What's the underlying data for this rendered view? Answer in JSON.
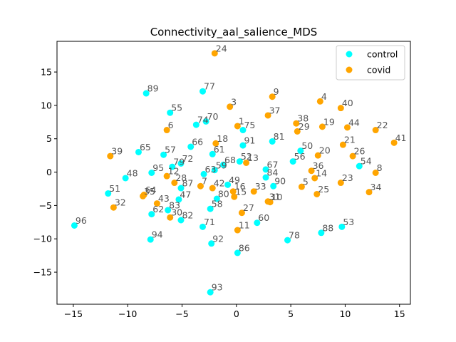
{
  "chart_data": {
    "type": "scatter",
    "title": "Connectivity_aal_salience_MDS",
    "xlabel": "",
    "ylabel": "",
    "xlim": [
      -16.5,
      16.0
    ],
    "ylim": [
      -19.8,
      19.6
    ],
    "xticks": [
      -15,
      -10,
      -5,
      0,
      5,
      10,
      15
    ],
    "xtick_labels": [
      "−15",
      "−10",
      "−5",
      "0",
      "5",
      "10",
      "15"
    ],
    "yticks": [
      -15,
      -10,
      -5,
      0,
      5,
      10,
      15
    ],
    "ytick_labels": [
      "−15",
      "−10",
      "−5",
      "0",
      "5",
      "10",
      "15"
    ],
    "grid": false,
    "legend_position": "top-right",
    "series": [
      {
        "name": "control",
        "color": "#00ffff",
        "points": [
          {
            "label": "48",
            "x": -10.2,
            "y": -0.9
          },
          {
            "label": "49",
            "x": -0.8,
            "y": -1.9
          },
          {
            "label": "50",
            "x": 5.9,
            "y": 3.2
          },
          {
            "label": "51",
            "x": -11.8,
            "y": -3.2
          },
          {
            "label": "52",
            "x": 0.3,
            "y": 1.6
          },
          {
            "label": "53",
            "x": 9.7,
            "y": -8.2
          },
          {
            "label": "54",
            "x": 11.3,
            "y": 0.9
          },
          {
            "label": "55",
            "x": -6.1,
            "y": 8.9
          },
          {
            "label": "56",
            "x": 5.2,
            "y": 1.6
          },
          {
            "label": "57",
            "x": -6.7,
            "y": 2.6
          },
          {
            "label": "58",
            "x": -2.4,
            "y": -5.5
          },
          {
            "label": "59",
            "x": -2.0,
            "y": 0.3
          },
          {
            "label": "60",
            "x": 1.9,
            "y": -7.6
          },
          {
            "label": "61",
            "x": -2.2,
            "y": 2.7
          },
          {
            "label": "62",
            "x": -7.8,
            "y": -6.3
          },
          {
            "label": "63",
            "x": -3.0,
            "y": -0.3
          },
          {
            "label": "65",
            "x": -9.0,
            "y": 3.0
          },
          {
            "label": "66",
            "x": -4.2,
            "y": 3.8
          },
          {
            "label": "67",
            "x": 2.7,
            "y": 0.4
          },
          {
            "label": "68",
            "x": -1.2,
            "y": 1.1
          },
          {
            "label": "70",
            "x": -2.8,
            "y": 7.6
          },
          {
            "label": "71",
            "x": -3.1,
            "y": -8.2
          },
          {
            "label": "72",
            "x": -5.1,
            "y": 1.3
          },
          {
            "label": "74",
            "x": -3.7,
            "y": 7.1
          },
          {
            "label": "75",
            "x": 0.6,
            "y": 6.3
          },
          {
            "label": "77",
            "x": -3.1,
            "y": 12.1
          },
          {
            "label": "78",
            "x": 4.7,
            "y": -10.2
          },
          {
            "label": "79",
            "x": -5.9,
            "y": 0.8
          },
          {
            "label": "80",
            "x": -1.8,
            "y": -4.0
          },
          {
            "label": "81",
            "x": 3.3,
            "y": 4.6
          },
          {
            "label": "82",
            "x": -5.1,
            "y": -7.2
          },
          {
            "label": "83",
            "x": -6.3,
            "y": -5.7
          },
          {
            "label": "84",
            "x": 2.7,
            "y": -0.8
          },
          {
            "label": "86",
            "x": 0.1,
            "y": -12.1
          },
          {
            "label": "87",
            "x": -5.1,
            "y": -2.4
          },
          {
            "label": "88",
            "x": 7.8,
            "y": -9.1
          },
          {
            "label": "89",
            "x": -8.3,
            "y": 11.8
          },
          {
            "label": "90",
            "x": 3.4,
            "y": -2.1
          },
          {
            "label": "91",
            "x": 0.6,
            "y": 4.0
          },
          {
            "label": "92",
            "x": -2.3,
            "y": -10.7
          },
          {
            "label": "93",
            "x": -2.4,
            "y": -18.0
          },
          {
            "label": "94",
            "x": -7.9,
            "y": -10.1
          },
          {
            "label": "95",
            "x": -7.8,
            "y": -0.1
          },
          {
            "label": "96",
            "x": -14.9,
            "y": -8.0
          },
          {
            "label": "47",
            "x": -5.3,
            "y": -4.1
          }
        ]
      },
      {
        "name": "covid",
        "color": "#ffa500",
        "points": [
          {
            "label": "1",
            "x": 0.1,
            "y": 6.9
          },
          {
            "label": "3",
            "x": -0.6,
            "y": 9.8
          },
          {
            "label": "4",
            "x": 7.7,
            "y": 10.6
          },
          {
            "label": "5",
            "x": 6.0,
            "y": -2.2
          },
          {
            "label": "6",
            "x": -6.4,
            "y": 6.3
          },
          {
            "label": "7",
            "x": -3.3,
            "y": -2.1
          },
          {
            "label": "8",
            "x": 12.8,
            "y": -0.1
          },
          {
            "label": "9",
            "x": 3.3,
            "y": 11.3
          },
          {
            "label": "10",
            "x": 3.1,
            "y": -4.5
          },
          {
            "label": "11",
            "x": 0.1,
            "y": -8.7
          },
          {
            "label": "12",
            "x": -6.4,
            "y": -0.6
          },
          {
            "label": "13",
            "x": 0.9,
            "y": 1.4
          },
          {
            "label": "14",
            "x": 7.2,
            "y": -0.9
          },
          {
            "label": "15",
            "x": -0.2,
            "y": -3.7
          },
          {
            "label": "16",
            "x": -0.3,
            "y": -2.9
          },
          {
            "label": "18",
            "x": -1.9,
            "y": 4.3
          },
          {
            "label": "19",
            "x": 7.9,
            "y": 6.8
          },
          {
            "label": "20",
            "x": 7.5,
            "y": 2.5
          },
          {
            "label": "21",
            "x": 9.8,
            "y": 4.1
          },
          {
            "label": "22",
            "x": 12.8,
            "y": 6.3
          },
          {
            "label": "23",
            "x": 9.6,
            "y": -1.6
          },
          {
            "label": "24",
            "x": -2.0,
            "y": 17.8
          },
          {
            "label": "25",
            "x": 7.4,
            "y": -3.3
          },
          {
            "label": "26",
            "x": 10.7,
            "y": 2.4
          },
          {
            "label": "27",
            "x": 0.5,
            "y": -6.1
          },
          {
            "label": "28",
            "x": -5.7,
            "y": -1.6
          },
          {
            "label": "29",
            "x": 5.6,
            "y": 6.1
          },
          {
            "label": "30",
            "x": -6.1,
            "y": -6.8
          },
          {
            "label": "31",
            "x": 2.9,
            "y": -4.4
          },
          {
            "label": "32",
            "x": -11.3,
            "y": -5.3
          },
          {
            "label": "33",
            "x": 1.6,
            "y": -2.9
          },
          {
            "label": "34",
            "x": 12.2,
            "y": -3.0
          },
          {
            "label": "35",
            "x": -8.6,
            "y": -3.6
          },
          {
            "label": "36",
            "x": 6.9,
            "y": 0.2
          },
          {
            "label": "37",
            "x": 2.9,
            "y": 8.5
          },
          {
            "label": "38",
            "x": 5.5,
            "y": 7.3
          },
          {
            "label": "39",
            "x": -11.6,
            "y": 2.4
          },
          {
            "label": "40",
            "x": 9.6,
            "y": 9.6
          },
          {
            "label": "41",
            "x": 14.5,
            "y": 4.4
          },
          {
            "label": "42",
            "x": -2.2,
            "y": -2.4
          },
          {
            "label": "43",
            "x": -7.3,
            "y": -4.7
          },
          {
            "label": "44",
            "x": 10.2,
            "y": 6.7
          },
          {
            "label": "64",
            "x": -8.5,
            "y": -3.4
          }
        ]
      }
    ]
  }
}
